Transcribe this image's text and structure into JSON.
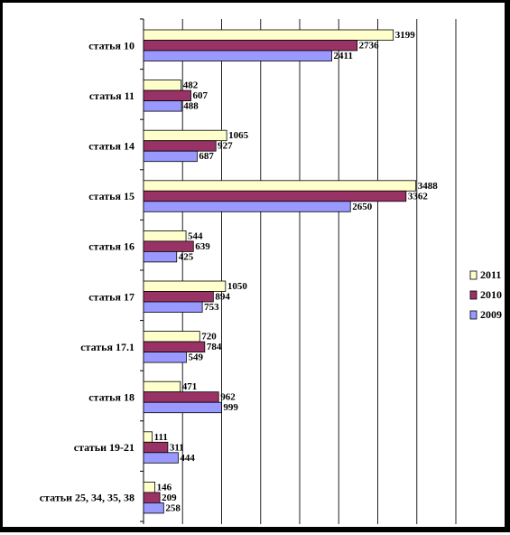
{
  "chart_data": {
    "type": "bar",
    "orientation": "horizontal",
    "categories": [
      "статья 10",
      "статья 11",
      "статья 14",
      "статья 15",
      "статья 16",
      "статья 17",
      "статья 17.1",
      "статья 18",
      "статьи 19-21",
      "статьи 25, 34, 35, 38"
    ],
    "series": [
      {
        "name": "2011",
        "color": "#ffffcc",
        "values": [
          3199,
          482,
          1065,
          3488,
          544,
          1050,
          720,
          471,
          111,
          146
        ]
      },
      {
        "name": "2010",
        "color": "#993366",
        "values": [
          2736,
          607,
          927,
          3362,
          639,
          894,
          784,
          962,
          311,
          209
        ]
      },
      {
        "name": "2009",
        "color": "#9999ff",
        "values": [
          2411,
          488,
          687,
          2650,
          425,
          753,
          549,
          999,
          444,
          258
        ]
      }
    ],
    "xlim": [
      0,
      4000
    ],
    "grid": true,
    "legend_position": "right"
  }
}
